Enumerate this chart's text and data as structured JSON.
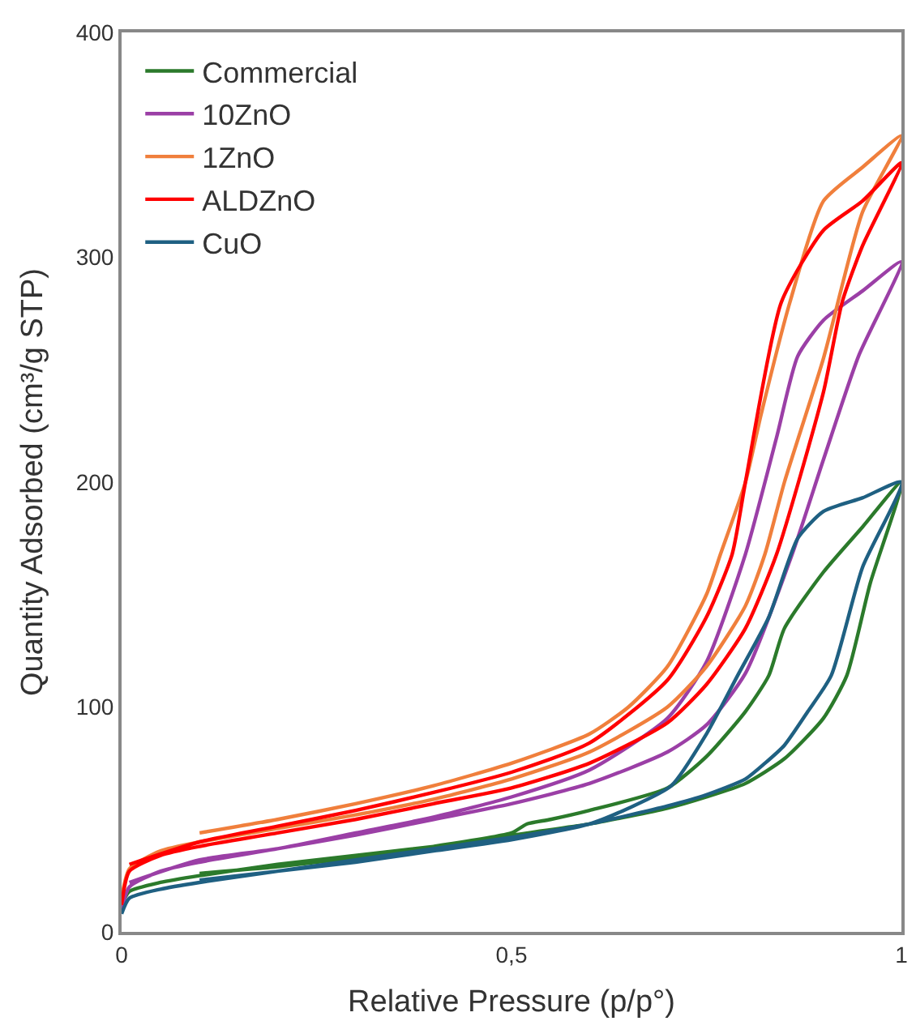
{
  "chart_data": {
    "type": "line",
    "xlabel": "Relative Pressure (p/p°)",
    "ylabel": "Quantity Adsorbed (cm³/g STP)",
    "xlim": [
      0,
      1
    ],
    "xticks": [
      0,
      {
        "value": 0.5,
        "label": "0,5"
      },
      1
    ],
    "ylim": [
      0,
      400
    ],
    "yticks": [
      0,
      100,
      200,
      300,
      400
    ],
    "legend": "top left",
    "marker": "none",
    "line_style": "solid",
    "series": [
      {
        "name": "Commercial",
        "color": "#2b7a2b",
        "x": [
          0,
          0.01,
          0.05,
          0.1,
          0.2,
          0.3,
          0.4,
          0.5,
          0.6,
          0.7,
          0.75,
          0.8,
          0.85,
          0.9,
          0.93,
          0.96,
          1,
          0.95,
          0.9,
          0.85,
          0.83,
          0.8,
          0.75,
          0.7,
          0.6,
          0.55,
          0.52,
          0.5,
          0.4,
          0.3,
          0.2,
          0.1
        ],
        "values": [
          12,
          18,
          22,
          25,
          30,
          34,
          38,
          43,
          48,
          55,
          60,
          66,
          77,
          95,
          114,
          155,
          200,
          180,
          160,
          135,
          114,
          98,
          78,
          64,
          54,
          50,
          48,
          44,
          38,
          33,
          29,
          26
        ]
      },
      {
        "name": "10ZnO",
        "color": "#9b3fa6",
        "x": [
          0,
          0.01,
          0.05,
          0.1,
          0.2,
          0.3,
          0.4,
          0.5,
          0.6,
          0.7,
          0.75,
          0.8,
          0.86,
          0.9,
          0.945,
          1,
          0.95,
          0.9,
          0.867,
          0.84,
          0.8,
          0.75,
          0.7,
          0.6,
          0.5,
          0.4,
          0.3,
          0.2,
          0.1,
          0.01
        ],
        "values": [
          10,
          20,
          27,
          31,
          37,
          43,
          50,
          57,
          66,
          80,
          92,
          115,
          168,
          210,
          256,
          298,
          285,
          272,
          256,
          220,
          168,
          120,
          95,
          72,
          60,
          51,
          44,
          37,
          32,
          22
        ]
      },
      {
        "name": "1ZnO",
        "color": "#f07f3c",
        "x": [
          0,
          0.01,
          0.05,
          0.1,
          0.2,
          0.3,
          0.4,
          0.5,
          0.6,
          0.7,
          0.75,
          0.8,
          0.825,
          0.85,
          0.9,
          0.95,
          1,
          0.95,
          0.9,
          0.857,
          0.82,
          0.8,
          0.768,
          0.75,
          0.7,
          0.65,
          0.6,
          0.5,
          0.4,
          0.3,
          0.2,
          0.1
        ],
        "values": [
          15,
          28,
          36,
          40,
          46,
          52,
          59,
          68,
          80,
          100,
          118,
          145,
          168,
          200,
          255,
          320,
          354,
          340,
          325,
          280,
          230,
          200,
          168,
          150,
          118,
          100,
          88,
          75,
          65,
          57,
          50,
          44
        ]
      },
      {
        "name": "ALDZnO",
        "color": "#ff0000",
        "x": [
          0,
          0.01,
          0.05,
          0.1,
          0.2,
          0.3,
          0.4,
          0.5,
          0.6,
          0.7,
          0.75,
          0.8,
          0.84,
          0.9,
          0.924,
          0.95,
          1,
          0.95,
          0.9,
          0.846,
          0.8,
          0.783,
          0.75,
          0.7,
          0.6,
          0.5,
          0.4,
          0.3,
          0.2,
          0.1,
          0.01
        ],
        "values": [
          12,
          27,
          34,
          38,
          44,
          50,
          57,
          64,
          75,
          93,
          110,
          135,
          168,
          240,
          280,
          305,
          342,
          325,
          312,
          280,
          200,
          168,
          140,
          112,
          84,
          71,
          62,
          54,
          47,
          40,
          30
        ]
      },
      {
        "name": "CuO",
        "color": "#1f6082",
        "x": [
          0,
          0.01,
          0.05,
          0.1,
          0.2,
          0.3,
          0.4,
          0.5,
          0.6,
          0.7,
          0.75,
          0.8,
          0.825,
          0.85,
          0.88,
          0.91,
          0.95,
          1,
          0.95,
          0.9,
          0.867,
          0.83,
          0.79,
          0.75,
          0.705,
          0.65,
          0.6,
          0.5,
          0.4,
          0.3,
          0.2,
          0.1
        ],
        "values": [
          8,
          15,
          19,
          22,
          27,
          32,
          37,
          42,
          48,
          56,
          61,
          68,
          75,
          83,
          98,
          114,
          162,
          200,
          193,
          187,
          175,
          140,
          114,
          88,
          65,
          55,
          48,
          41,
          36,
          31,
          27,
          23
        ]
      }
    ]
  }
}
